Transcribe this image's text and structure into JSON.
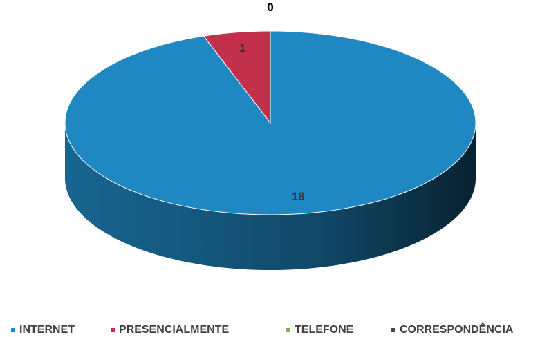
{
  "chart_data": {
    "type": "pie3d",
    "categories": [
      "INTERNET",
      "PRESENCIALMENTE",
      "TELEFONE",
      "CORRESPONDÊNCIA"
    ],
    "values": [
      18,
      1,
      0,
      0
    ],
    "colors": [
      "#1f87c2",
      "#c3304b",
      "#7ab648",
      "#3d4a6b"
    ],
    "legend": "bottom"
  }
}
